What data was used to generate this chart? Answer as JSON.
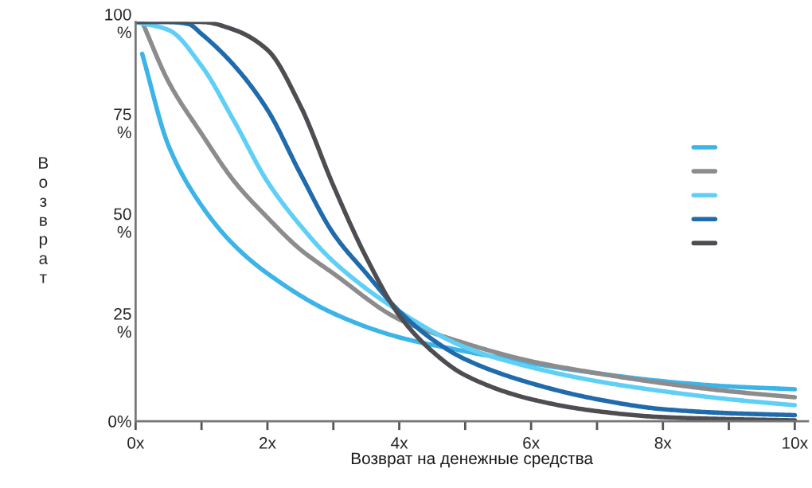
{
  "chart_data": {
    "type": "line",
    "xlabel": "Возврат на денежные средства",
    "ylabel": "В\nо\nз\nв\nр\nа\nт",
    "xlim": [
      0,
      10.2
    ],
    "ylim": [
      0,
      100
    ],
    "xticks": [
      {
        "value": 0,
        "label": "0x"
      },
      {
        "value": 1,
        "label": null
      },
      {
        "value": 2,
        "label": "2x"
      },
      {
        "value": 3,
        "label": null
      },
      {
        "value": 4,
        "label": "4x"
      },
      {
        "value": 5,
        "label": null
      },
      {
        "value": 6,
        "label": "6x"
      },
      {
        "value": 7,
        "label": null
      },
      {
        "value": 8,
        "label": "8x"
      },
      {
        "value": 9,
        "label": null
      },
      {
        "value": 10,
        "label": "10x"
      }
    ],
    "yticks": [
      {
        "value": 0,
        "label": "0%"
      },
      {
        "value": 25,
        "label": "25\n%"
      },
      {
        "value": 50,
        "label": "50\n%"
      },
      {
        "value": 75,
        "label": "75\n%"
      },
      {
        "value": 100,
        "label": "100\n%"
      }
    ],
    "grid": false,
    "line_style": "solid",
    "marker": "none",
    "series": [
      {
        "color": "#3db4e8",
        "x": [
          0.1,
          0.5,
          1,
          1.5,
          2,
          3,
          4,
          5,
          6,
          7,
          8,
          9,
          10
        ],
        "values": [
          92,
          69,
          54,
          44,
          37,
          27,
          21,
          17.5,
          14.5,
          12,
          10,
          8.7,
          8
        ]
      },
      {
        "color": "#8c8c8e",
        "x": [
          0.1,
          0.5,
          1,
          1.5,
          2,
          2.5,
          3,
          4,
          5,
          6,
          7,
          8,
          9,
          10
        ],
        "values": [
          100,
          85,
          72,
          60,
          51,
          43,
          37,
          25.5,
          19.5,
          15,
          12,
          9.5,
          7.5,
          6
        ]
      },
      {
        "color": "#5fcff5",
        "x": [
          0,
          0.5,
          1,
          1.5,
          2,
          2.5,
          3,
          4,
          5,
          6,
          7,
          8,
          9,
          10
        ],
        "values": [
          100,
          98,
          89,
          75,
          60,
          49,
          40,
          27.5,
          18.5,
          13.5,
          10,
          7.5,
          5.5,
          4
        ]
      },
      {
        "color": "#1f6bab",
        "x": [
          0,
          0.5,
          0.8,
          1,
          1.5,
          2,
          2.5,
          3,
          3.5,
          4,
          4.5,
          5,
          6,
          7,
          8,
          9,
          10
        ],
        "values": [
          100,
          100,
          99.5,
          97,
          89,
          78,
          62,
          47,
          37,
          27.5,
          20.5,
          15.5,
          9.5,
          5.5,
          3,
          2,
          1.5
        ]
      },
      {
        "color": "#4d4d52",
        "x": [
          0,
          1,
          1.5,
          2,
          2.5,
          3,
          3.5,
          4,
          4.5,
          5,
          6,
          7,
          8,
          9,
          10
        ],
        "values": [
          100,
          100,
          98,
          93,
          79,
          59,
          41,
          26.5,
          17.5,
          11.5,
          5.5,
          2.5,
          1,
          0.5,
          0.2
        ]
      }
    ]
  }
}
